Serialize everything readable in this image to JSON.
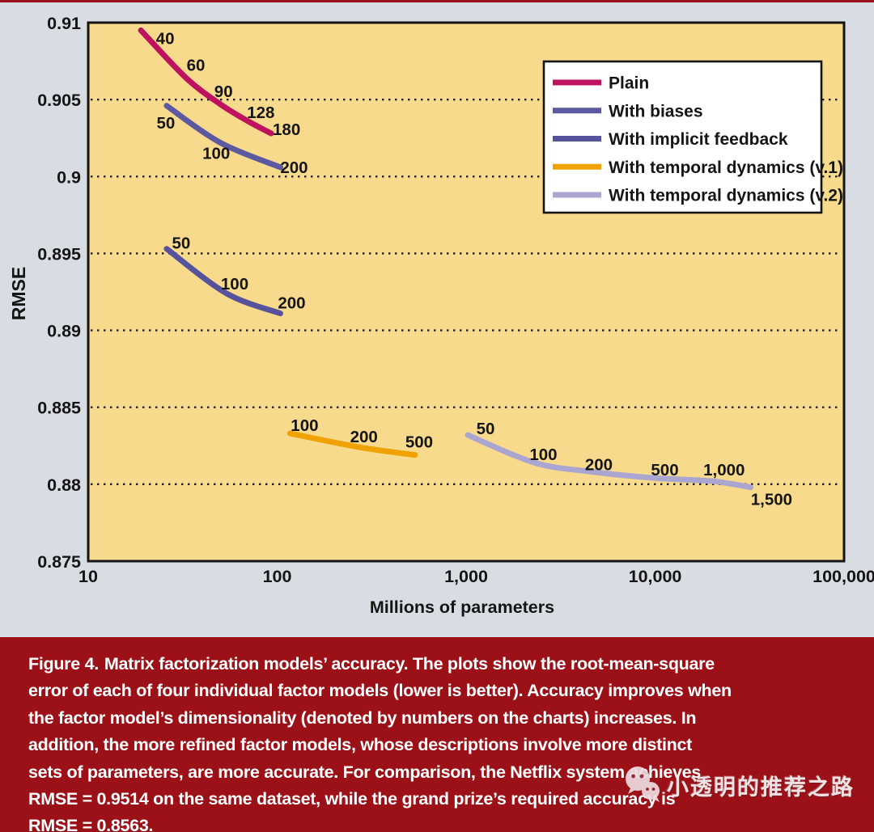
{
  "colors": {
    "page_background": "#D8DCE3",
    "plot_background": "#F7DA8C",
    "plot_border": "#141414",
    "grid": "#1C1C1C",
    "axis_text": "#151515",
    "legend_background": "#FFFFFF",
    "caption_background": "#9B1117",
    "caption_text": "#FFFFFF"
  },
  "chart_data": {
    "type": "line",
    "title": "",
    "xlabel": "Millions of parameters",
    "ylabel": "RMSE",
    "x_axis": {
      "scale": "log",
      "min": 10,
      "max": 100000,
      "ticks": [
        {
          "value": 10,
          "label": "10"
        },
        {
          "value": 100,
          "label": "100"
        },
        {
          "value": 1000,
          "label": "1,000"
        },
        {
          "value": 10000,
          "label": "10,000"
        },
        {
          "value": 100000,
          "label": "100,000"
        }
      ]
    },
    "y_axis": {
      "min": 0.875,
      "max": 0.91,
      "ticks": [
        {
          "value": 0.91,
          "label": "0.91"
        },
        {
          "value": 0.905,
          "label": "0.905"
        },
        {
          "value": 0.9,
          "label": "0.9"
        },
        {
          "value": 0.895,
          "label": "0.895"
        },
        {
          "value": 0.89,
          "label": "0.89"
        },
        {
          "value": 0.885,
          "label": "0.885"
        },
        {
          "value": 0.88,
          "label": "0.88"
        },
        {
          "value": 0.875,
          "label": "0.875"
        }
      ],
      "gridlines": [
        0.905,
        0.9,
        0.895,
        0.89,
        0.885,
        0.88
      ]
    },
    "legend_position": "top-right",
    "series": [
      {
        "name": "Plain",
        "color": "#BE1260",
        "points": [
          {
            "x": 19,
            "y": 0.9095,
            "label": "40",
            "label_dx": 30,
            "label_dy": 10
          },
          {
            "x": 33,
            "y": 0.9064,
            "label": "60",
            "label_dx": 12,
            "label_dy": -16
          },
          {
            "x": 50,
            "y": 0.9047,
            "label": "90",
            "label_dx": 4,
            "label_dy": -16
          },
          {
            "x": 70,
            "y": 0.9036,
            "label": "128",
            "label_dx": 16,
            "label_dy": -11
          },
          {
            "x": 93,
            "y": 0.9028,
            "label": "180",
            "label_dx": 19,
            "label_dy": -5
          }
        ]
      },
      {
        "name": "With biases",
        "color": "#5D59A1",
        "points": [
          {
            "x": 26,
            "y": 0.9046,
            "label": "50",
            "label_dx": -1,
            "label_dy": 21
          },
          {
            "x": 50,
            "y": 0.9022,
            "label": "100",
            "label_dx": -5,
            "label_dy": 13
          },
          {
            "x": 104,
            "y": 0.9006,
            "label": "200",
            "label_dx": 17,
            "label_dy": 0
          }
        ]
      },
      {
        "name": "With implicit feedback",
        "color": "#56529B",
        "points": [
          {
            "x": 26,
            "y": 0.8953,
            "label": "50",
            "label_dx": 18,
            "label_dy": -7
          },
          {
            "x": 54,
            "y": 0.8924,
            "label": "100",
            "label_dx": 10,
            "label_dy": -12
          },
          {
            "x": 104,
            "y": 0.8911,
            "label": "200",
            "label_dx": 14,
            "label_dy": -13
          }
        ]
      },
      {
        "name": "With temporal dynamics (v.1)",
        "color": "#F0A202",
        "points": [
          {
            "x": 117,
            "y": 0.8833,
            "label": "100",
            "label_dx": 18,
            "label_dy": -10
          },
          {
            "x": 274,
            "y": 0.8824,
            "label": "200",
            "label_dx": 5,
            "label_dy": -13
          },
          {
            "x": 537,
            "y": 0.8819,
            "label": "500",
            "label_dx": 5,
            "label_dy": -16
          }
        ]
      },
      {
        "name": "With temporal dynamics (v.2)",
        "color": "#ABA5D2",
        "points": [
          {
            "x": 1020,
            "y": 0.8832,
            "label": "50",
            "label_dx": 22,
            "label_dy": -8
          },
          {
            "x": 2300,
            "y": 0.8814,
            "label": "100",
            "label_dx": 11,
            "label_dy": -10
          },
          {
            "x": 4700,
            "y": 0.8808,
            "label": "200",
            "label_dx": 7,
            "label_dy": -9
          },
          {
            "x": 10000,
            "y": 0.8804,
            "label": "500",
            "label_dx": 12,
            "label_dy": -10
          },
          {
            "x": 20000,
            "y": 0.8802,
            "label": "1,000",
            "label_dx": 15,
            "label_dy": -14
          },
          {
            "x": 32000,
            "y": 0.8798,
            "label": "1,500",
            "label_dx": 26,
            "label_dy": 15
          }
        ]
      }
    ]
  },
  "caption": {
    "figure_label": "Figure 4.",
    "lines": [
      "Matrix factorization models’ accuracy. The plots show the root-mean-square",
      "error of each of four individual factor models (lower is better). Accuracy improves when",
      "the factor model’s dimensionality (denoted by numbers on the charts) increases. In",
      "addition, the more refined factor models, whose descriptions involve more distinct",
      "sets of parameters, are more accurate. For comparison, the Netflix system achieves",
      "RMSE = 0.9514 on the same dataset, while the grand prize’s required accuracy is",
      "RMSE = 0.8563."
    ]
  },
  "watermark": {
    "icon": "wechat-logo",
    "text": "小透明的推荐之路"
  }
}
